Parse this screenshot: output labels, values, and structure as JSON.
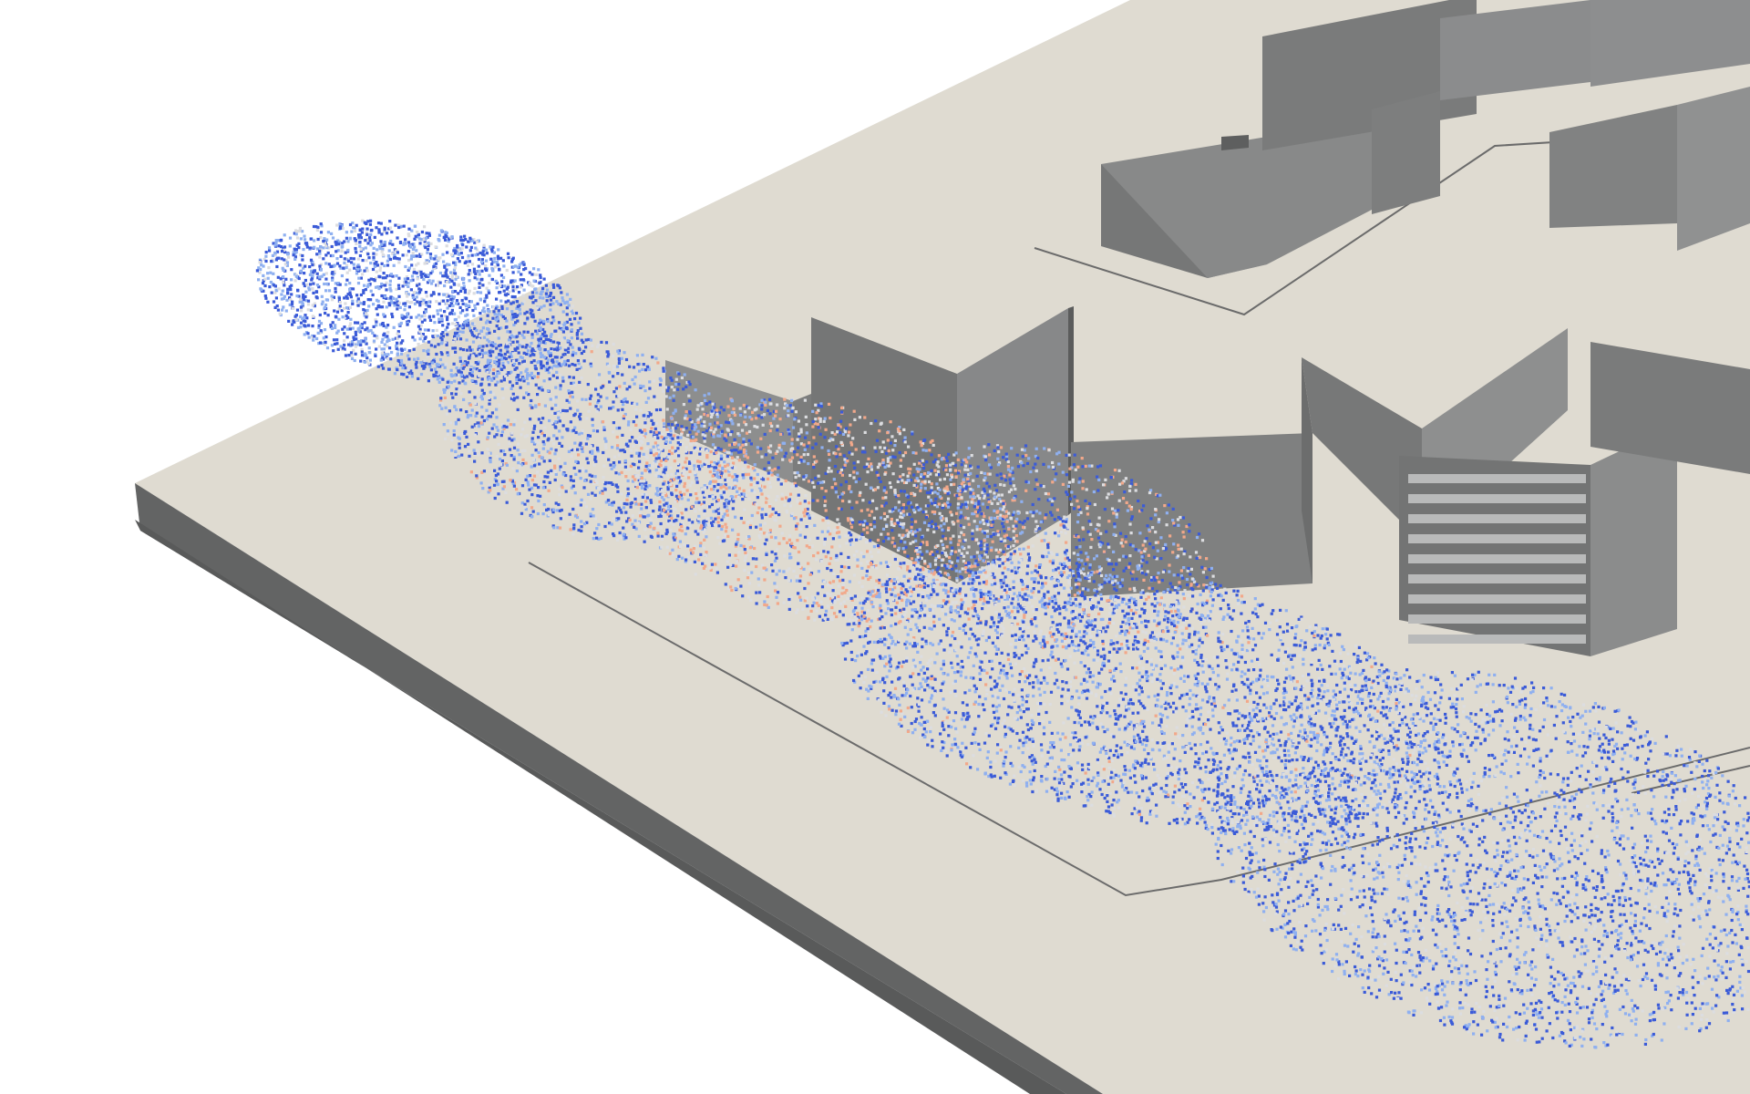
{
  "scene": {
    "background_color": "#ffffff",
    "ground_top_color": "#dfdbd1",
    "ground_side_color": "#636464",
    "building_colors": {
      "light": "#a9aaaa",
      "mid": "#878889",
      "dark": "#707171",
      "roof": "#dcd8ce"
    },
    "particle_colormap": {
      "low": "#3b5bd8",
      "mid_low": "#8fb0f0",
      "neutral": "#dcdde0",
      "high": "#f2a88a"
    }
  }
}
